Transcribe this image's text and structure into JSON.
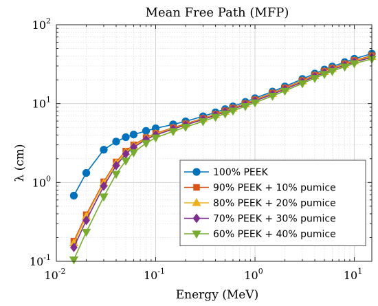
{
  "chart_data": {
    "type": "line",
    "title": "Mean Free Path (MFP)",
    "xlabel": "Energy (MeV)",
    "ylabel": "λ (cm)",
    "xscale": "log",
    "yscale": "log",
    "xlim": [
      0.01,
      15
    ],
    "ylim": [
      0.1,
      100
    ],
    "grid": true,
    "legend_position": "bottom-right",
    "x_ticks": [
      {
        "value": 0.01,
        "base": "10",
        "exp": "-2"
      },
      {
        "value": 0.1,
        "base": "10",
        "exp": "-1"
      },
      {
        "value": 1,
        "base": "10",
        "exp": "0"
      },
      {
        "value": 10,
        "base": "10",
        "exp": "1"
      }
    ],
    "y_ticks": [
      {
        "value": 0.1,
        "base": "10",
        "exp": "-1"
      },
      {
        "value": 1,
        "base": "10",
        "exp": "0"
      },
      {
        "value": 10,
        "base": "10",
        "exp": "1"
      },
      {
        "value": 100,
        "base": "10",
        "exp": "2"
      }
    ],
    "x": [
      0.015,
      0.02,
      0.03,
      0.04,
      0.05,
      0.06,
      0.08,
      0.1,
      0.15,
      0.2,
      0.3,
      0.4,
      0.5,
      0.6,
      0.8,
      1,
      1.5,
      2,
      3,
      4,
      5,
      6,
      8,
      10,
      15
    ],
    "series": [
      {
        "name": "100% PEEK",
        "color": "#0072BD",
        "marker": "circle",
        "values": [
          0.68,
          1.32,
          2.6,
          3.3,
          3.75,
          4.05,
          4.5,
          4.85,
          5.45,
          5.95,
          6.9,
          7.75,
          8.5,
          9.2,
          10.5,
          11.7,
          14.2,
          16.5,
          20.5,
          24,
          27,
          29.5,
          33.5,
          37,
          43
        ]
      },
      {
        "name": "90% PEEK + 10% pumice",
        "color": "#D95319",
        "marker": "square",
        "values": [
          0.18,
          0.39,
          1.02,
          1.82,
          2.5,
          3.0,
          3.7,
          4.2,
          4.95,
          5.55,
          6.5,
          7.35,
          8.1,
          8.8,
          10.0,
          11.2,
          13.6,
          15.8,
          19.6,
          23,
          25.8,
          28.2,
          32,
          35.3,
          40.5
        ]
      },
      {
        "name": "80% PEEK + 20% pumice",
        "color": "#EDB120",
        "marker": "triangle-up",
        "values": [
          0.17,
          0.37,
          0.98,
          1.76,
          2.42,
          2.92,
          3.62,
          4.12,
          4.85,
          5.45,
          6.4,
          7.2,
          7.95,
          8.65,
          9.85,
          11.0,
          13.35,
          15.5,
          19.2,
          22.5,
          25.3,
          27.6,
          31.3,
          34.6,
          39.5
        ]
      },
      {
        "name": "70% PEEK + 30% pumice",
        "color": "#7E2F8E",
        "marker": "diamond",
        "values": [
          0.15,
          0.33,
          0.9,
          1.64,
          2.3,
          2.8,
          3.5,
          4.0,
          4.75,
          5.35,
          6.3,
          7.1,
          7.85,
          8.5,
          9.7,
          10.8,
          13.1,
          15.2,
          18.8,
          22,
          24.7,
          27,
          30.6,
          33.8,
          38.5
        ]
      },
      {
        "name": "60% PEEK + 40% pumice",
        "color": "#77AC30",
        "marker": "triangle-down",
        "values": [
          0.105,
          0.235,
          0.66,
          1.28,
          1.88,
          2.4,
          3.15,
          3.7,
          4.45,
          5.05,
          5.95,
          6.75,
          7.45,
          8.1,
          9.25,
          10.3,
          12.5,
          14.5,
          18.0,
          21,
          23.6,
          25.8,
          29.3,
          32.3,
          36.8
        ]
      }
    ]
  }
}
